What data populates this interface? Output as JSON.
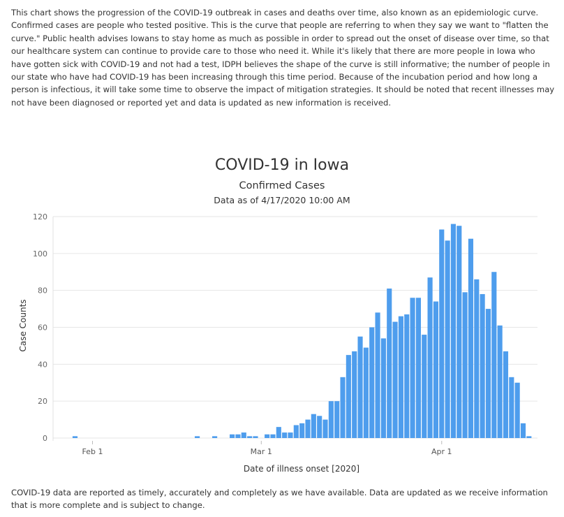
{
  "intro_text": "This chart shows the progression of the COVID-19 outbreak in cases and deaths over time, also known as an epidemiologic curve. Confirmed cases are people who tested positive. This is the curve that people are referring to when they say we want to \"flatten the curve.\" Public health advises Iowans to stay home as much as possible in order to spread out the onset of disease over time, so that our healthcare system can continue to provide care to those who need it. While it's likely that there are more people in Iowa who have gotten sick with COVID-19 and not had a test, IDPH believes the shape of the curve is still informative; the number of people in our state who have had COVID-19 has been increasing through this time period. Because of the incubation period and how long a person is infectious, it will take some time to observe the impact of mitigation strategies. It should be noted that recent illnesses may not have been diagnosed or reported yet and data is updated as new information is received.",
  "footer_text": "COVID-19 data are reported as timely, accurately and completely as we have available.  Data are updated as we receive information that is more complete and is subject to change.",
  "chart_data": {
    "type": "bar",
    "title": "COVID-19 in Iowa",
    "subtitle": "Confirmed Cases",
    "as_of": "Data as of 4/17/2020 10:00 AM",
    "xlabel": "Date of illness onset [2020]",
    "ylabel": "Case Counts",
    "ylim": [
      0,
      120
    ],
    "yticks": [
      0,
      20,
      40,
      60,
      80,
      100,
      120
    ],
    "xticks": [
      {
        "label": "Feb 1",
        "date": "2020-02-01"
      },
      {
        "label": "Mar 1",
        "date": "2020-03-01"
      },
      {
        "label": "Apr 1",
        "date": "2020-04-01"
      }
    ],
    "x_range": [
      "2020-01-28",
      "2020-04-16"
    ],
    "grid": true,
    "bar_color": "#4e9ded",
    "bars": [
      {
        "date": "2020-01-29",
        "value": 1
      },
      {
        "date": "2020-02-19",
        "value": 1
      },
      {
        "date": "2020-02-22",
        "value": 1
      },
      {
        "date": "2020-02-25",
        "value": 2
      },
      {
        "date": "2020-02-26",
        "value": 2
      },
      {
        "date": "2020-02-27",
        "value": 3
      },
      {
        "date": "2020-02-28",
        "value": 1
      },
      {
        "date": "2020-02-29",
        "value": 1
      },
      {
        "date": "2020-03-02",
        "value": 2
      },
      {
        "date": "2020-03-03",
        "value": 2
      },
      {
        "date": "2020-03-04",
        "value": 6
      },
      {
        "date": "2020-03-05",
        "value": 3
      },
      {
        "date": "2020-03-06",
        "value": 3
      },
      {
        "date": "2020-03-07",
        "value": 7
      },
      {
        "date": "2020-03-08",
        "value": 8
      },
      {
        "date": "2020-03-09",
        "value": 10
      },
      {
        "date": "2020-03-10",
        "value": 13
      },
      {
        "date": "2020-03-11",
        "value": 12
      },
      {
        "date": "2020-03-12",
        "value": 10
      },
      {
        "date": "2020-03-13",
        "value": 20
      },
      {
        "date": "2020-03-14",
        "value": 20
      },
      {
        "date": "2020-03-15",
        "value": 33
      },
      {
        "date": "2020-03-16",
        "value": 45
      },
      {
        "date": "2020-03-17",
        "value": 47
      },
      {
        "date": "2020-03-18",
        "value": 55
      },
      {
        "date": "2020-03-19",
        "value": 49
      },
      {
        "date": "2020-03-20",
        "value": 60
      },
      {
        "date": "2020-03-21",
        "value": 68
      },
      {
        "date": "2020-03-22",
        "value": 54
      },
      {
        "date": "2020-03-23",
        "value": 81
      },
      {
        "date": "2020-03-24",
        "value": 63
      },
      {
        "date": "2020-03-25",
        "value": 66
      },
      {
        "date": "2020-03-26",
        "value": 67
      },
      {
        "date": "2020-03-27",
        "value": 76
      },
      {
        "date": "2020-03-28",
        "value": 76
      },
      {
        "date": "2020-03-29",
        "value": 56
      },
      {
        "date": "2020-03-30",
        "value": 87
      },
      {
        "date": "2020-03-31",
        "value": 74
      },
      {
        "date": "2020-04-01",
        "value": 113
      },
      {
        "date": "2020-04-02",
        "value": 107
      },
      {
        "date": "2020-04-03",
        "value": 116
      },
      {
        "date": "2020-04-04",
        "value": 115
      },
      {
        "date": "2020-04-05",
        "value": 79
      },
      {
        "date": "2020-04-06",
        "value": 108
      },
      {
        "date": "2020-04-07",
        "value": 86
      },
      {
        "date": "2020-04-08",
        "value": 78
      },
      {
        "date": "2020-04-09",
        "value": 70
      },
      {
        "date": "2020-04-10",
        "value": 90
      },
      {
        "date": "2020-04-11",
        "value": 61
      },
      {
        "date": "2020-04-12",
        "value": 47
      },
      {
        "date": "2020-04-13",
        "value": 33
      },
      {
        "date": "2020-04-14",
        "value": 30
      },
      {
        "date": "2020-04-15",
        "value": 8
      },
      {
        "date": "2020-04-16",
        "value": 1
      }
    ]
  }
}
